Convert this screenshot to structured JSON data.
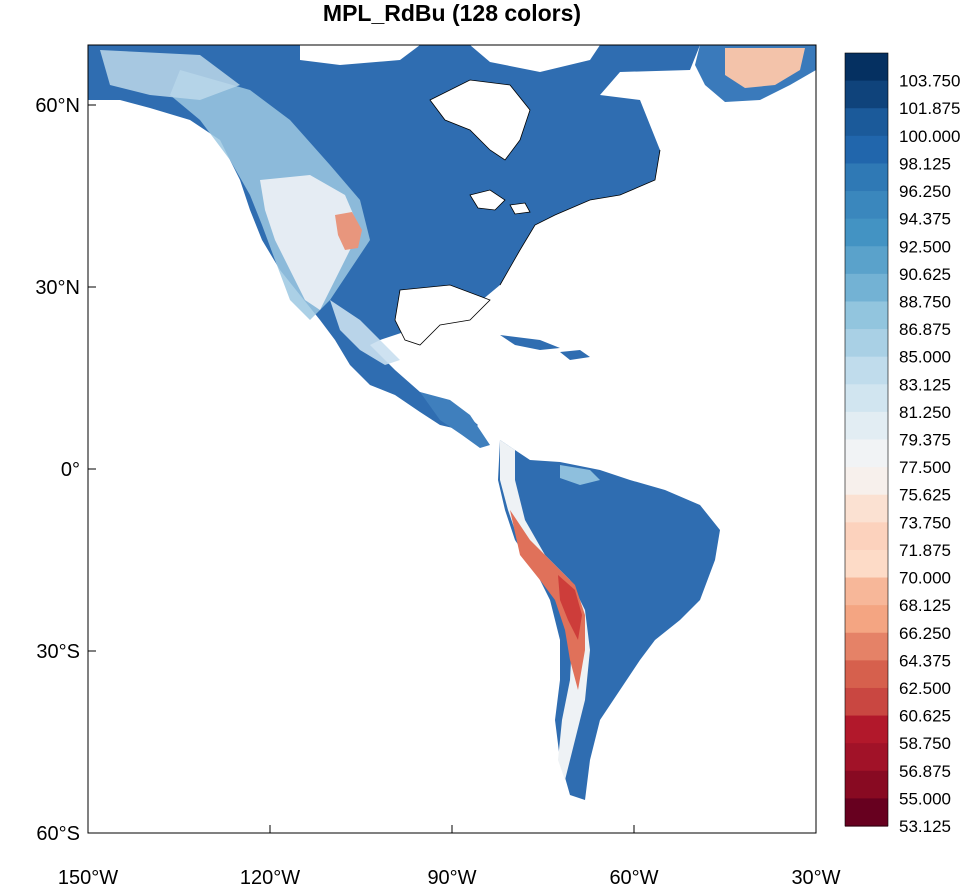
{
  "title": "MPL_RdBu (128 colors)",
  "axes": {
    "lon_ticks": [
      "150°W",
      "120°W",
      "90°W",
      "60°W",
      "30°W"
    ],
    "lat_ticks": [
      "60°N",
      "30°N",
      "0°",
      "30°S",
      "60°S"
    ],
    "lon_range": [
      -150,
      -30
    ],
    "lat_range": [
      -60,
      70
    ]
  },
  "colorbar": {
    "labels": [
      "103.750",
      "101.875",
      "100.000",
      "98.125",
      "96.250",
      "94.375",
      "92.500",
      "90.625",
      "88.750",
      "86.875",
      "85.000",
      "83.125",
      "81.250",
      "79.375",
      "77.500",
      "75.625",
      "73.750",
      "71.875",
      "70.000",
      "68.125",
      "66.250",
      "64.375",
      "62.500",
      "60.625",
      "58.750",
      "56.875",
      "55.000",
      "53.125"
    ],
    "colors_top_to_bottom": [
      "#053061",
      "#0f437b",
      "#1b5a9a",
      "#2166ac",
      "#2f79b5",
      "#3a87bd",
      "#4393c3",
      "#5aa2cb",
      "#73b2d4",
      "#92c5de",
      "#a9d0e5",
      "#c0dcec",
      "#d1e5f0",
      "#e2edf3",
      "#f1f3f5",
      "#f7f0ec",
      "#fbe1d2",
      "#fcd2bd",
      "#fddbc7",
      "#f7b799",
      "#f4a582",
      "#e58267",
      "#d6604d",
      "#c94741",
      "#b2182b",
      "#a11228",
      "#880a22",
      "#67001f"
    ]
  },
  "map_colors": {
    "ocean": "#ffffff",
    "land_blue": "#2f6db1",
    "land_light": "#8ebfdd",
    "highland_white": "#eef2f5",
    "highland_red": "#e0715a",
    "andes_deep": "#cd3d3a",
    "coastline": "#000000"
  }
}
